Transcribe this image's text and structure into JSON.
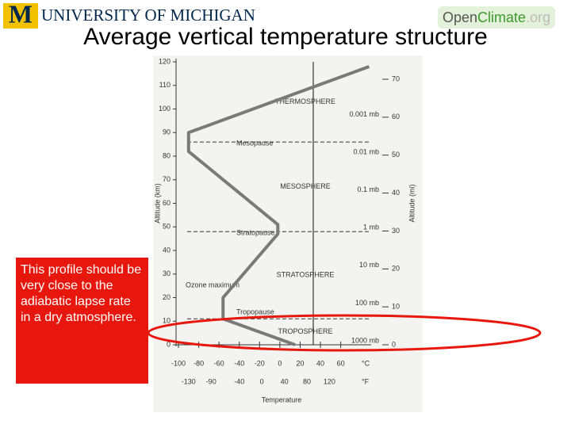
{
  "header": {
    "university_initial": "M",
    "university": "UNIVERSITY OF MICHIGAN",
    "site": {
      "open": "Open",
      "climate": "Climate",
      "domain": ".org"
    }
  },
  "title": "Average vertical temperature structure",
  "callout": "This profile should be very close to the adiabatic lapse rate in a dry atmosphere.",
  "chart_data": {
    "type": "line",
    "x_label": "Temperature",
    "y_label": "Altitude (km)",
    "y2_label": "Altitude (mi)",
    "x": [
      15,
      -56,
      -56,
      -2,
      -2,
      -90,
      -90,
      88
    ],
    "values": [
      0,
      11,
      20,
      47,
      51,
      82,
      90,
      118
    ],
    "color": "#7a7a7a",
    "xlim": [
      -100,
      90
    ],
    "xticks": [
      -100,
      -80,
      -60,
      -40,
      -20,
      0,
      20,
      40,
      60
    ],
    "x_unit": "°C",
    "xticks_f": [
      -130,
      -90,
      -40,
      0,
      40,
      80,
      120
    ],
    "x_unit_f": "°F",
    "ylim": [
      0,
      120
    ],
    "yticks": [
      0,
      10,
      20,
      30,
      40,
      50,
      60,
      70,
      80,
      90,
      100,
      110,
      120
    ],
    "y2lim": [
      0,
      74.6
    ],
    "y2ticks": [
      0,
      10,
      20,
      30,
      40,
      50,
      60,
      70
    ],
    "pressure_levels": [
      {
        "value": 0,
        "label": "1000 mb"
      },
      {
        "value": 16,
        "label": "100 mb"
      },
      {
        "value": 32,
        "label": "10 mb"
      },
      {
        "value": 48,
        "label": "1 mb"
      },
      {
        "value": 64,
        "label": "0.1 mb"
      },
      {
        "value": 80,
        "label": "0.01 mb"
      },
      {
        "value": 96,
        "label": "0.001 mb"
      }
    ],
    "boundaries": [
      {
        "name": "Tropopause",
        "altitude": 11
      },
      {
        "name": "Stratopause",
        "altitude": 48
      },
      {
        "name": "Mesopause",
        "altitude": 86
      }
    ],
    "layers": [
      "TROPOSPHERE",
      "STRATOSPHERE",
      "MESOSPHERE",
      "THERMOSPHERE"
    ],
    "annotation": "Ozone maximum"
  }
}
